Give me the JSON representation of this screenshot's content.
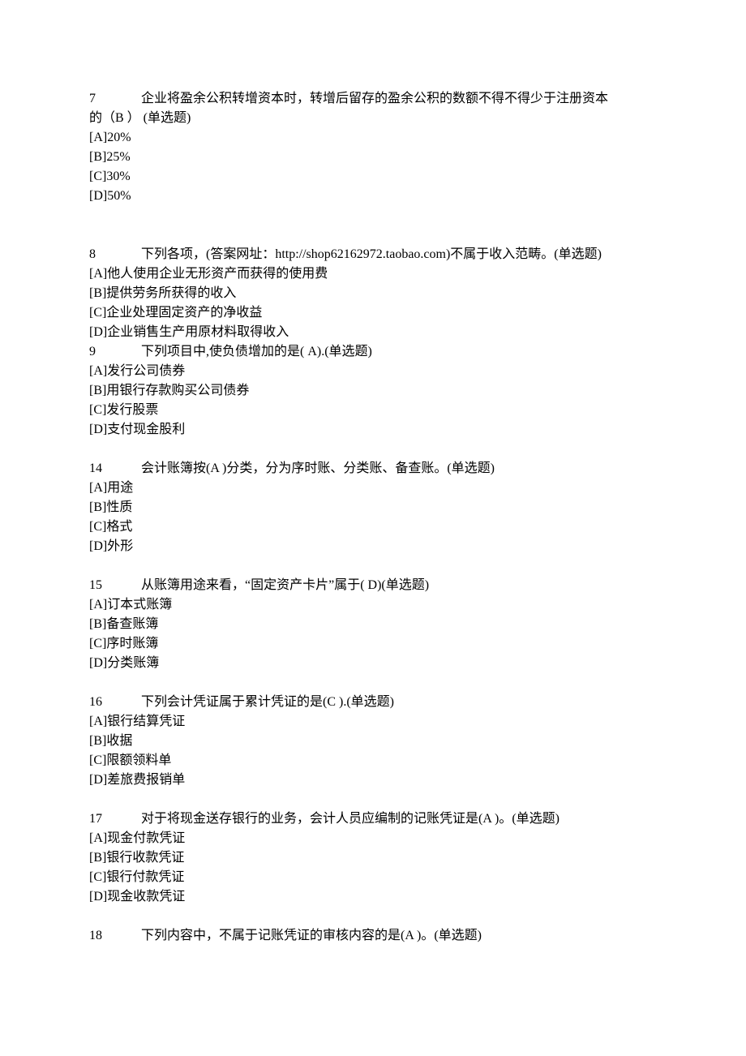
{
  "questions": [
    {
      "num": "7",
      "text_lines": [
        "企业将盈余公积转增资本时，转增后留存的盈余公积的数额不得不得少于注册资本",
        "的（B ） (单选题)"
      ],
      "options": [
        "[A]20%",
        "[B]25%",
        "[C]30%",
        "[D]50%"
      ],
      "spacer_after": true
    },
    {
      "num": "8",
      "text_lines": [
        "下列各项，(答案网址：http://shop62162972.taobao.com)不属于收入范畴。(单选题)"
      ],
      "options": [
        "[A]他人使用企业无形资产而获得的使用费",
        "[B]提供劳务所获得的收入",
        "[C]企业处理固定资产的净收益",
        "[D]企业销售生产用原材料取得收入"
      ],
      "spacer_after": false
    },
    {
      "num": "9",
      "text_lines": [
        "下列项目中,使负债增加的是( A).(单选题)"
      ],
      "options": [
        "[A]发行公司债券",
        "[B]用银行存款购买公司债券",
        "[C]发行股票",
        "[D]支付现金股利"
      ],
      "spacer_after": true
    },
    {
      "num": "14",
      "text_lines": [
        "会计账簿按(A )分类，分为序时账、分类账、备查账。(单选题)"
      ],
      "options": [
        "[A]用途",
        "[B]性质",
        "[C]格式",
        "[D]外形"
      ],
      "spacer_after": true
    },
    {
      "num": "15",
      "text_lines": [
        "从账簿用途来看，“固定资产卡片”属于( D)(单选题)"
      ],
      "options": [
        "[A]订本式账簿",
        "[B]备查账簿",
        "[C]序时账簿",
        "[D]分类账簿"
      ],
      "spacer_after": true
    },
    {
      "num": "16",
      "text_lines": [
        "下列会计凭证属于累计凭证的是(C   ).(单选题)"
      ],
      "options": [
        "[A]银行结算凭证",
        "[B]收据",
        "[C]限额领料单",
        "[D]差旅费报销单"
      ],
      "spacer_after": true
    },
    {
      "num": "17",
      "text_lines": [
        "对于将现金送存银行的业务，会计人员应编制的记账凭证是(A )。(单选题)"
      ],
      "options": [
        "[A]现金付款凭证",
        "[B]银行收款凭证",
        "[C]银行付款凭证",
        "[D]现金收款凭证"
      ],
      "spacer_after": true
    },
    {
      "num": "18",
      "text_lines": [
        "下列内容中，不属于记账凭证的审核内容的是(A )。(单选题)"
      ],
      "options": [],
      "spacer_after": false
    }
  ]
}
